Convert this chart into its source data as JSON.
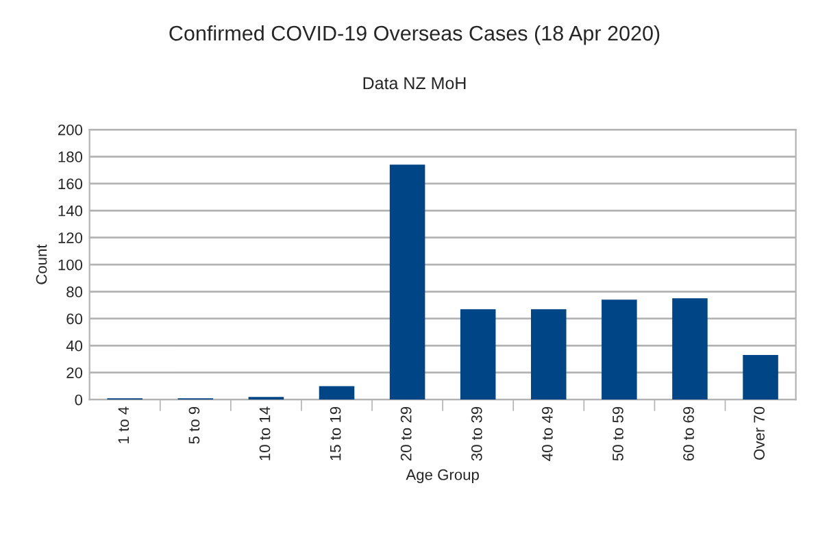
{
  "chart_data": {
    "type": "bar",
    "title": "Confirmed COVID-19 Overseas Cases (18 Apr 2020)",
    "subtitle": "Data NZ MoH",
    "xlabel": "Age Group",
    "ylabel": "Count",
    "categories": [
      "1 to 4",
      "5 to 9",
      "10 to 14",
      "15 to 19",
      "20 to 29",
      "30 to 39",
      "40 to 49",
      "50 to 59",
      "60 to 69",
      "Over 70"
    ],
    "values": [
      1,
      1,
      2,
      10,
      174,
      67,
      67,
      74,
      75,
      33
    ],
    "color": "#004586",
    "ylim": [
      0,
      200
    ],
    "yticks": [
      0,
      20,
      40,
      60,
      80,
      100,
      120,
      140,
      160,
      180,
      200
    ],
    "grid": "y",
    "legend": false
  }
}
